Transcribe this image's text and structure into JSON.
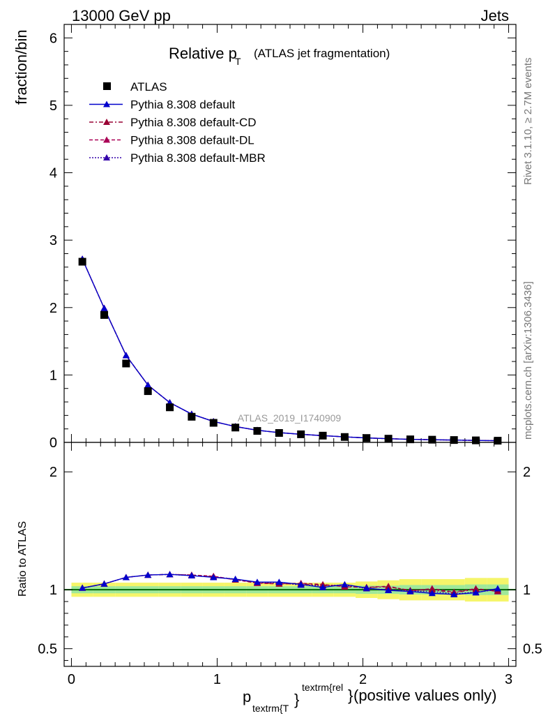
{
  "header": {
    "energy": "13000 GeV pp",
    "process": "Jets"
  },
  "side": {
    "rivet": "Rivet 3.1.10, ≥ 2.7M events",
    "mcplots": "mcplots.cern.ch [arXiv:1306.3436]"
  },
  "chart_data": {
    "type": "line",
    "title_main": "Relative p",
    "title_sub": "T",
    "title_rest": "(ATLAS jet fragmentation)",
    "analysis_label": "ATLAS_2019_I1740909",
    "xlabel": {
      "p": "p",
      "sub": "textrm{T",
      "sup": "textrm{rel",
      "brace": "}",
      "brace2": "}",
      "rest": " (positive values only)"
    },
    "ylabel_main": "fraction/bin",
    "ylabel_ratio": "Ratio to ATLAS",
    "xlim": [
      -0.05,
      3.05
    ],
    "ylim_main": [
      0,
      6.2
    ],
    "ylim_ratio": [
      0.35,
      2.25
    ],
    "xticks": [
      {
        "v": 0,
        "label": "0"
      },
      {
        "v": 1,
        "label": "1"
      },
      {
        "v": 2,
        "label": "2"
      },
      {
        "v": 3,
        "label": "3"
      }
    ],
    "yticks_main": [
      {
        "v": 0,
        "label": "0"
      },
      {
        "v": 1,
        "label": "1"
      },
      {
        "v": 2,
        "label": "2"
      },
      {
        "v": 3,
        "label": "3"
      },
      {
        "v": 4,
        "label": "4"
      },
      {
        "v": 5,
        "label": "5"
      },
      {
        "v": 6,
        "label": "6"
      }
    ],
    "yticks_ratio": [
      {
        "v": 0.5,
        "label": "0.5"
      },
      {
        "v": 1,
        "label": "1"
      },
      {
        "v": 2,
        "label": "2"
      }
    ],
    "x": [
      0.075,
      0.225,
      0.375,
      0.525,
      0.675,
      0.825,
      0.975,
      1.125,
      1.275,
      1.425,
      1.575,
      1.725,
      1.875,
      2.025,
      2.175,
      2.325,
      2.475,
      2.625,
      2.775,
      2.925
    ],
    "data": {
      "name": "ATLAS",
      "values": [
        2.68,
        1.89,
        1.17,
        0.76,
        0.52,
        0.38,
        0.29,
        0.22,
        0.17,
        0.14,
        0.12,
        0.1,
        0.08,
        0.065,
        0.055,
        0.045,
        0.04,
        0.035,
        0.03,
        0.025
      ],
      "band_inner": [
        0.03,
        0.03,
        0.03,
        0.03,
        0.03,
        0.03,
        0.03,
        0.03,
        0.03,
        0.03,
        0.03,
        0.03,
        0.03,
        0.035,
        0.035,
        0.04,
        0.04,
        0.04,
        0.045,
        0.045
      ],
      "band_outer": [
        0.06,
        0.06,
        0.06,
        0.06,
        0.06,
        0.06,
        0.06,
        0.06,
        0.06,
        0.06,
        0.06,
        0.06,
        0.06,
        0.07,
        0.08,
        0.09,
        0.09,
        0.09,
        0.1,
        0.1
      ]
    },
    "series": [
      {
        "name": "Pythia 8.308 default",
        "color": "#0000cc",
        "dash": "",
        "values": [
          2.72,
          1.99,
          1.29,
          0.85,
          0.59,
          0.42,
          0.31,
          0.235,
          0.18,
          0.145,
          0.12,
          0.1,
          0.082,
          0.066,
          0.055,
          0.045,
          0.039,
          0.034,
          0.029,
          0.025
        ],
        "ratio": [
          1.015,
          1.05,
          1.105,
          1.125,
          1.13,
          1.12,
          1.105,
          1.09,
          1.065,
          1.065,
          1.045,
          1.02,
          1.045,
          1.015,
          0.995,
          0.985,
          0.97,
          0.96,
          0.975,
          1.01
        ]
      },
      {
        "name": "Pythia 8.308 default-CD",
        "color": "#990033",
        "dash": "6,3,2,3",
        "values": [
          2.72,
          1.99,
          1.29,
          0.85,
          0.59,
          0.42,
          0.31,
          0.235,
          0.18,
          0.145,
          0.12,
          0.1,
          0.082,
          0.066,
          0.055,
          0.045,
          0.039,
          0.034,
          0.029,
          0.025
        ],
        "ratio": [
          1.015,
          1.05,
          1.105,
          1.125,
          1.13,
          1.125,
          1.11,
          1.085,
          1.06,
          1.05,
          1.05,
          1.04,
          1.03,
          1.02,
          1.025,
          0.995,
          1.0,
          0.975,
          1.005,
          0.99
        ]
      },
      {
        "name": "Pythia 8.308 default-DL",
        "color": "#aa0055",
        "dash": "5,3",
        "values": [
          2.72,
          1.99,
          1.29,
          0.85,
          0.59,
          0.42,
          0.31,
          0.235,
          0.18,
          0.145,
          0.12,
          0.1,
          0.082,
          0.066,
          0.055,
          0.045,
          0.039,
          0.034,
          0.029,
          0.025
        ],
        "ratio": [
          1.015,
          1.05,
          1.105,
          1.125,
          1.13,
          1.125,
          1.115,
          1.085,
          1.055,
          1.05,
          1.055,
          1.045,
          1.025,
          1.02,
          1.03,
          0.99,
          1.01,
          0.98,
          1.01,
          0.985
        ]
      },
      {
        "name": "Pythia 8.308 default-MBR",
        "color": "#3300aa",
        "dash": "2,2",
        "values": [
          2.72,
          1.99,
          1.29,
          0.85,
          0.59,
          0.42,
          0.31,
          0.235,
          0.18,
          0.145,
          0.12,
          0.1,
          0.082,
          0.066,
          0.055,
          0.045,
          0.039,
          0.034,
          0.029,
          0.025
        ],
        "ratio": [
          1.015,
          1.05,
          1.105,
          1.125,
          1.13,
          1.12,
          1.11,
          1.09,
          1.06,
          1.06,
          1.04,
          1.035,
          1.04,
          1.01,
          1.0,
          0.99,
          0.985,
          0.965,
          0.98,
          1.0
        ]
      }
    ],
    "legend": "top-left",
    "grid": false
  }
}
